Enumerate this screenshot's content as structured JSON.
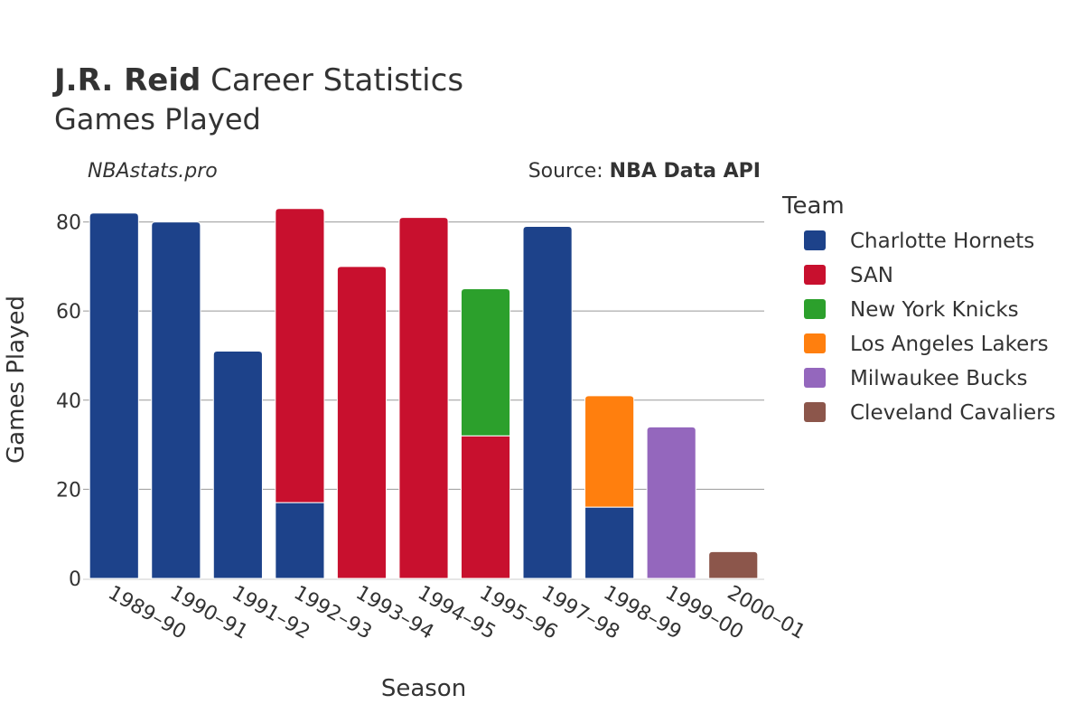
{
  "title": {
    "player": "J.R. Reid",
    "rest": " Career Statistics"
  },
  "subtitle": "Games Played",
  "site": "NBAstats.pro",
  "source": {
    "prefix": "Source: ",
    "name": "NBA Data API"
  },
  "legend_title": "Team",
  "chart_data": {
    "type": "bar",
    "stacked": true,
    "xlabel": "Season",
    "ylabel": "Games Played",
    "ylim": [
      0,
      86
    ],
    "yticks": [
      0,
      20,
      40,
      60,
      80
    ],
    "grid": true,
    "legend_placement": "right",
    "categories": [
      "1989–90",
      "1990–91",
      "1991–92",
      "1992–93",
      "1993–94",
      "1994–95",
      "1995–96",
      "1997–98",
      "1998–99",
      "1999–00",
      "2000–01"
    ],
    "series": [
      {
        "name": "Charlotte Hornets",
        "color": "#1d428a",
        "values": [
          82,
          80,
          51,
          17,
          0,
          0,
          0,
          79,
          16,
          0,
          0
        ]
      },
      {
        "name": "SAN",
        "color": "#c8102e",
        "values": [
          0,
          0,
          0,
          66,
          70,
          81,
          32,
          0,
          0,
          0,
          0
        ]
      },
      {
        "name": "New York Knicks",
        "color": "#2ca02c",
        "values": [
          0,
          0,
          0,
          0,
          0,
          0,
          33,
          0,
          0,
          0,
          0
        ]
      },
      {
        "name": "Los Angeles Lakers",
        "color": "#ff7f0e",
        "values": [
          0,
          0,
          0,
          0,
          0,
          0,
          0,
          0,
          25,
          0,
          0
        ]
      },
      {
        "name": "Milwaukee Bucks",
        "color": "#9467bd",
        "values": [
          0,
          0,
          0,
          0,
          0,
          0,
          0,
          0,
          0,
          34,
          0
        ]
      },
      {
        "name": "Cleveland Cavaliers",
        "color": "#8c564b",
        "values": [
          0,
          0,
          0,
          0,
          0,
          0,
          0,
          0,
          0,
          0,
          6
        ]
      }
    ]
  }
}
